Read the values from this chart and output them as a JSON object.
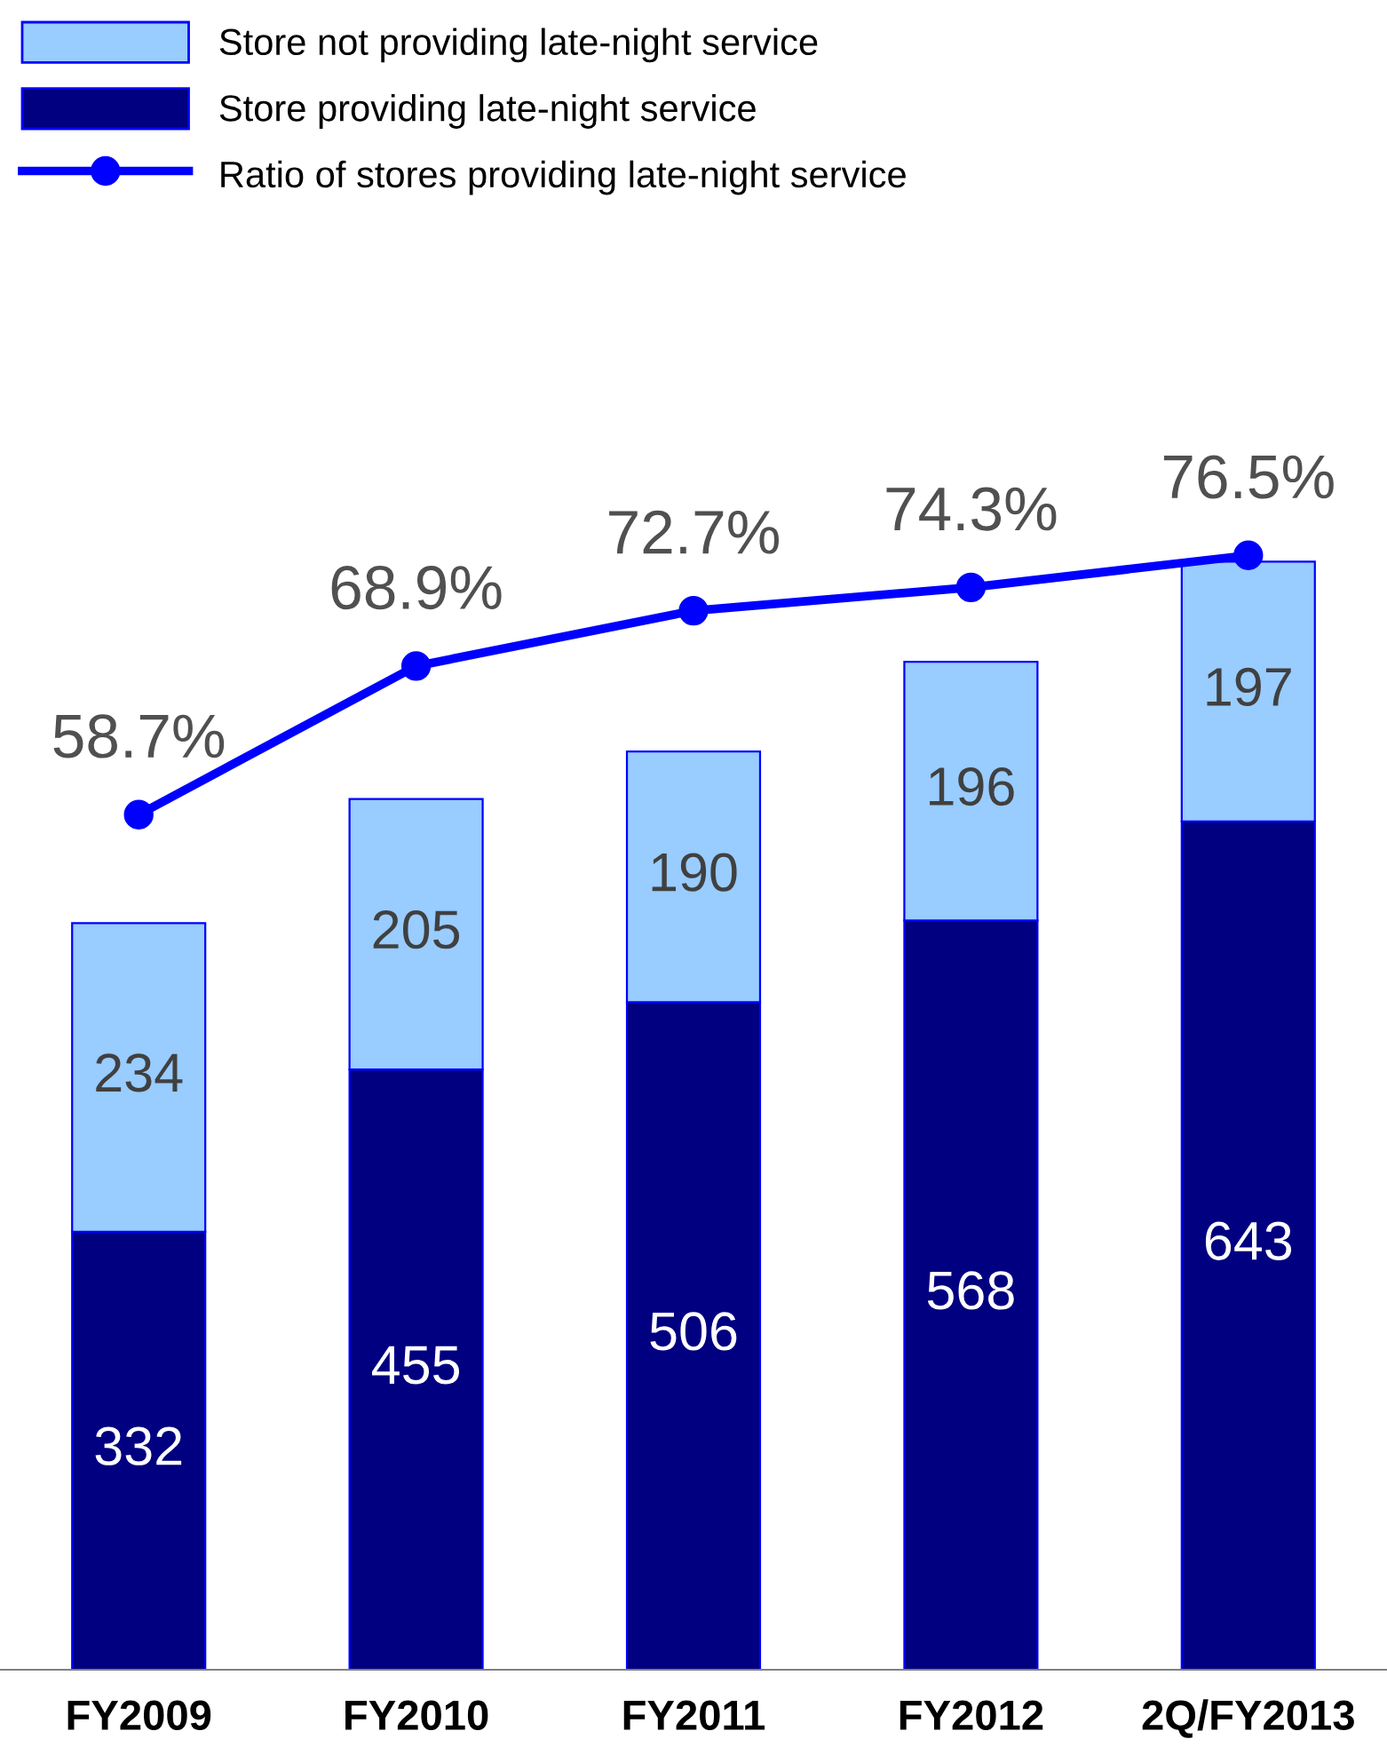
{
  "chart_data": {
    "type": "bar",
    "stacked": true,
    "data_labels": true,
    "legend": "top left",
    "tick_labels": "x",
    "categories": [
      "FY2009",
      "FY2010",
      "FY2011",
      "FY2012",
      "2Q/FY2013"
    ],
    "series": [
      {
        "name": "Store providing late-night service",
        "color": "#000080",
        "values": [
          332,
          455,
          506,
          568,
          643
        ]
      },
      {
        "name": "Store not providing late-night service",
        "color": "#99ccff",
        "values": [
          234,
          205,
          190,
          196,
          197
        ]
      },
      {
        "name": "Ratio of stores providing late-night service",
        "type": "line",
        "axis": "y2",
        "color": "#0000ff",
        "marker": "circle",
        "line_style": "solid",
        "values": [
          58.7,
          68.9,
          72.7,
          74.3,
          76.5
        ],
        "value_labels": [
          "58.7%",
          "68.9%",
          "72.7%",
          "74.3%",
          "76.5%"
        ]
      }
    ]
  }
}
